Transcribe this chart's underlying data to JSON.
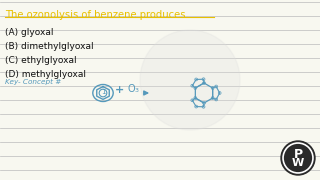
{
  "title": "The ozonolysis of benzene produces",
  "title_color": "#E8C000",
  "options": [
    "(A) glyoxal",
    "(B) dimethylglyoxal",
    "(C) ethylglyoxal",
    "(D) methylglyoxal"
  ],
  "options_color": "#111111",
  "bg_color": "#F8F8F0",
  "line_color": "#BBBBBB",
  "sketch_color": "#5599BB",
  "key_text": "Key- Concept #",
  "logo_bg": "#333333",
  "logo_text_color": "#FFFFFF"
}
